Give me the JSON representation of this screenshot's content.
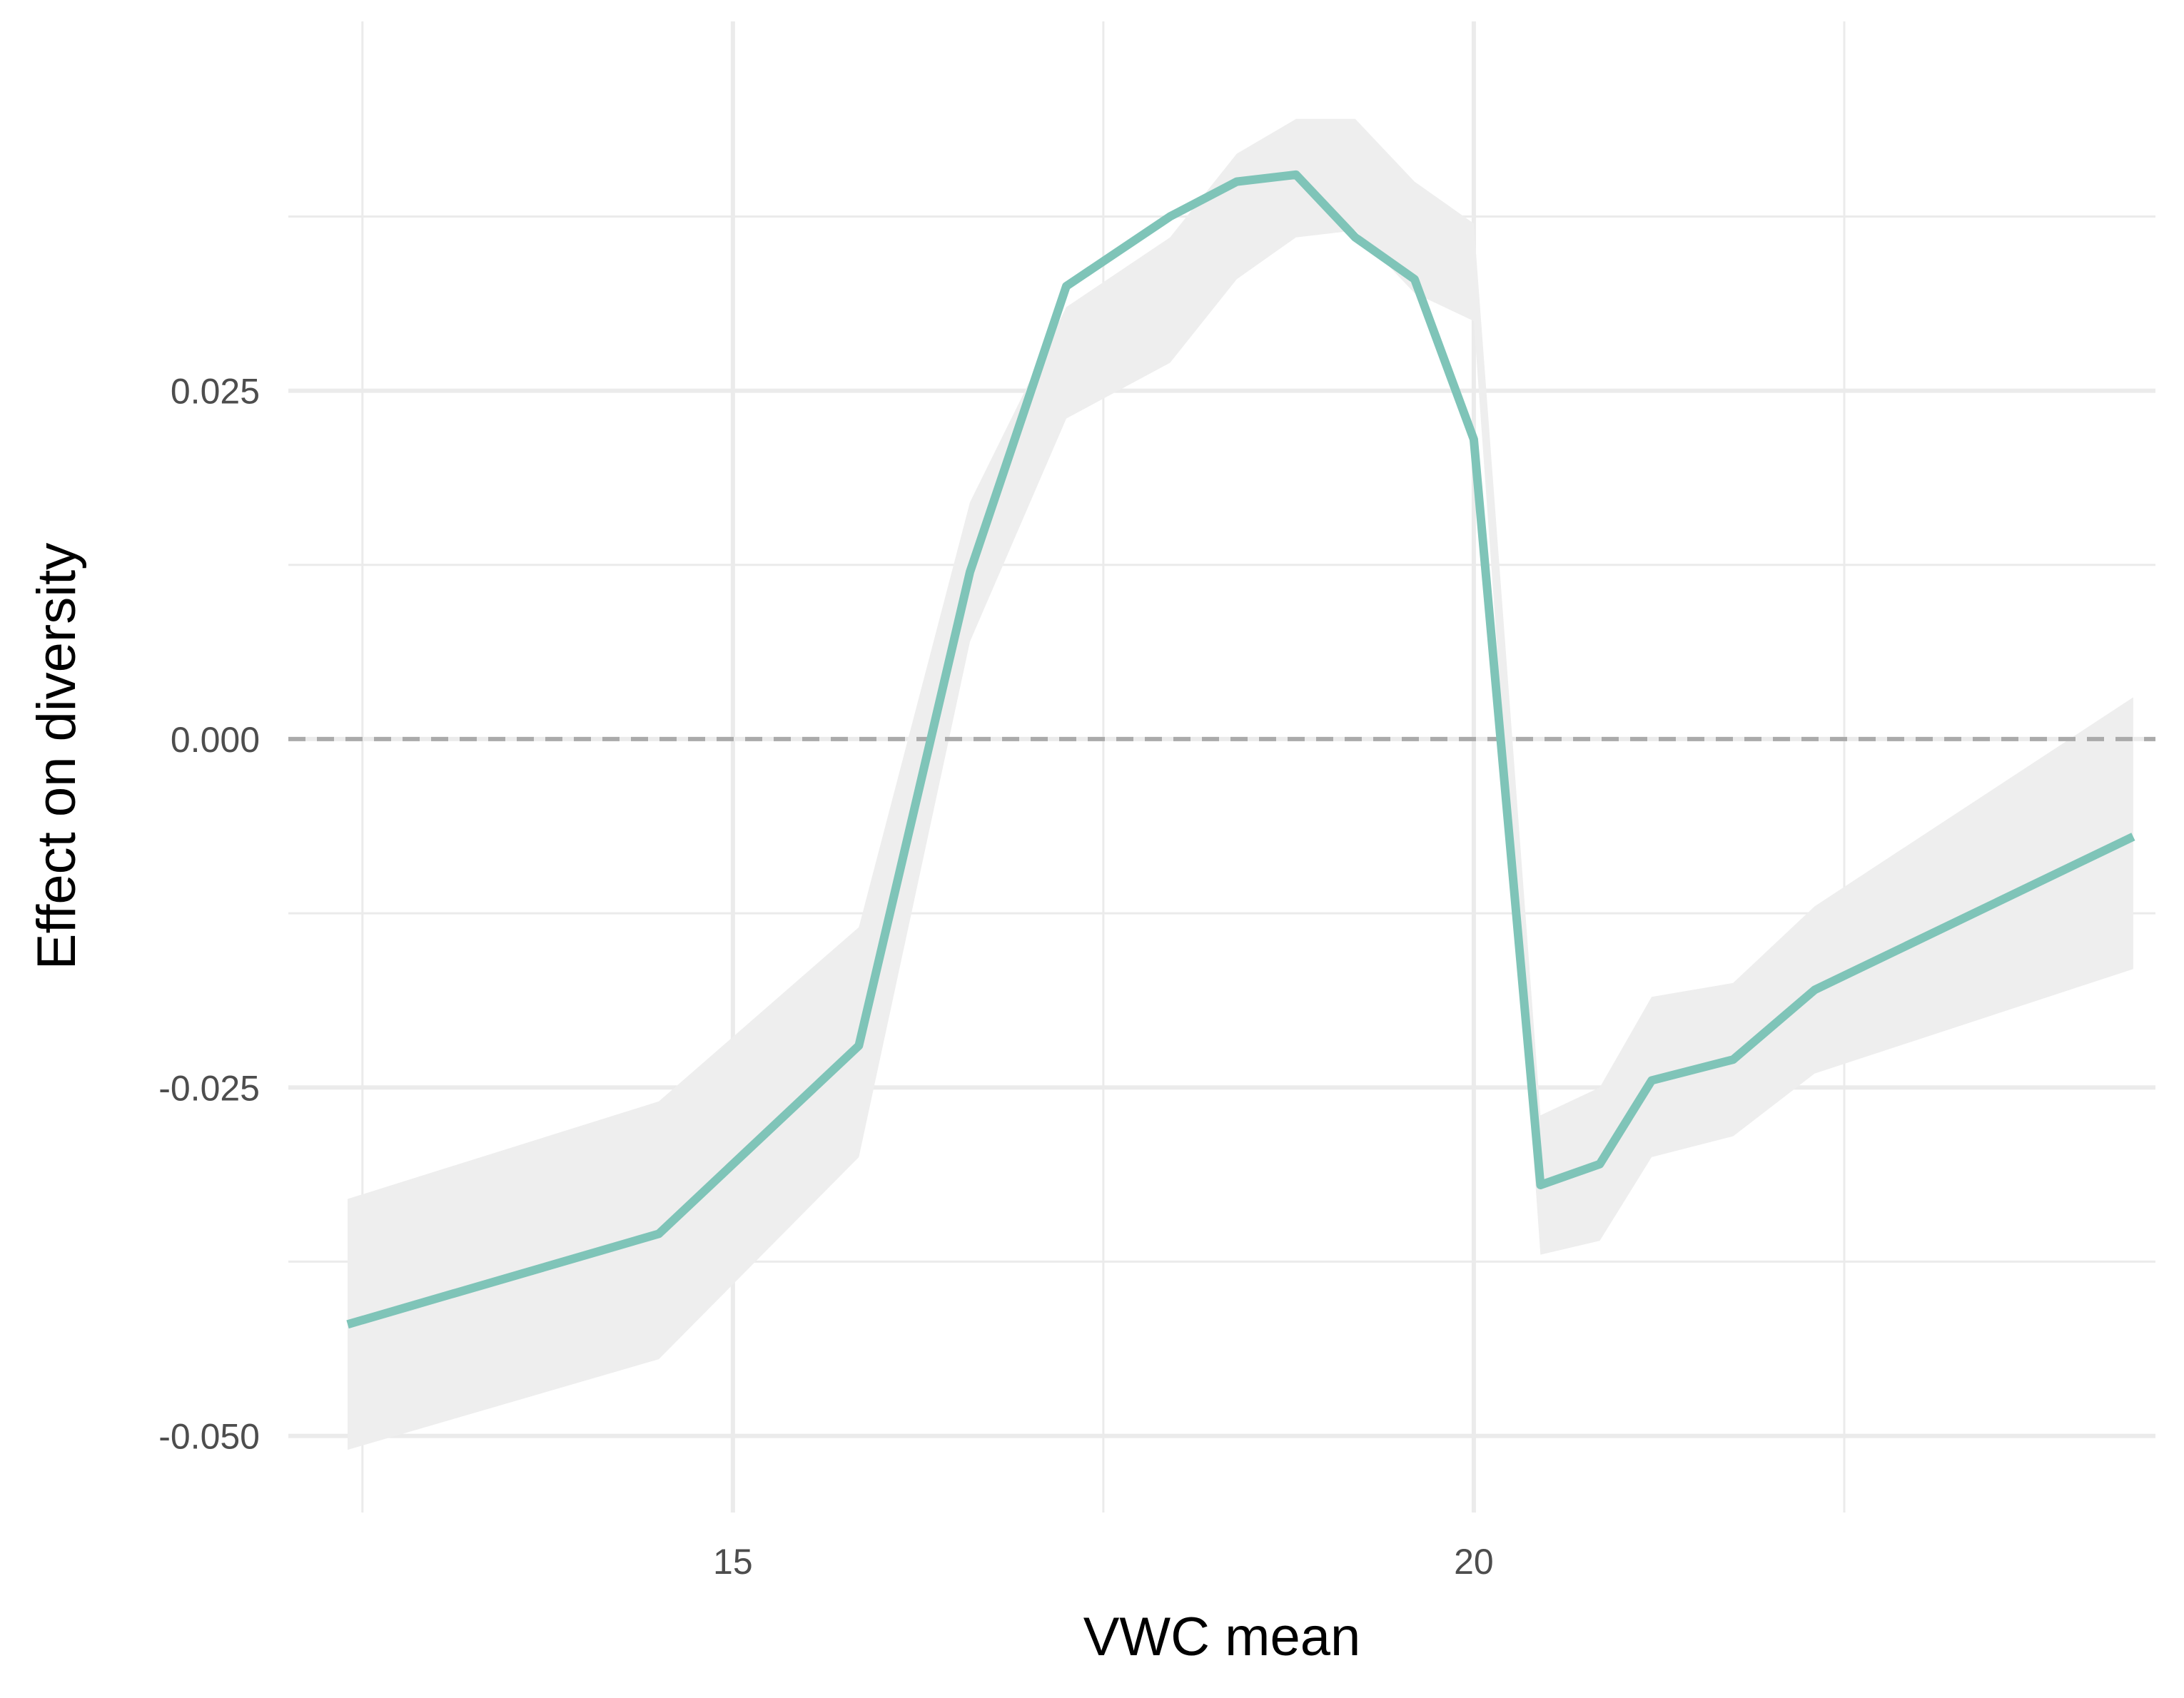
{
  "chart_data": {
    "type": "line",
    "xlabel": "VWC mean",
    "ylabel": "Effect on diversity",
    "xlim": [
      12.0,
      24.6
    ],
    "ylim": [
      -0.0555,
      0.0515
    ],
    "x_ticks": [
      15,
      20
    ],
    "x_minor_ticks": [
      12.5,
      17.5,
      22.5
    ],
    "y_ticks": [
      {
        "value": -0.05,
        "label": "-0.050"
      },
      {
        "value": -0.025,
        "label": "-0.025"
      },
      {
        "value": 0.0,
        "label": "0.000"
      },
      {
        "value": 0.025,
        "label": "0.025"
      }
    ],
    "y_minor_ticks": [
      -0.0375,
      -0.0125,
      0.0125,
      0.0375
    ],
    "reference_line": {
      "y": 0.0,
      "style": "dashed",
      "color": "#aaaaaa"
    },
    "grid": true,
    "colors": {
      "line": "#7fc4b8",
      "ribbon": "#eeeeee",
      "grid": "#ebebeb"
    },
    "series": [
      {
        "x": [
          12.4,
          14.5,
          15.85,
          16.6,
          17.25,
          17.95,
          18.4,
          18.8,
          19.2,
          19.6,
          20.0,
          20.45,
          20.85,
          21.2,
          21.75,
          22.3,
          24.45
        ],
        "y": [
          -0.042,
          -0.0355,
          -0.022,
          0.012,
          0.0325,
          0.0375,
          0.04,
          0.0405,
          0.036,
          0.033,
          0.0215,
          -0.032,
          -0.0305,
          -0.0245,
          -0.023,
          -0.018,
          -0.007
        ],
        "lower": [
          -0.051,
          -0.0445,
          -0.03,
          0.007,
          0.023,
          0.027,
          0.033,
          0.036,
          0.0365,
          0.032,
          0.03,
          -0.037,
          -0.036,
          -0.03,
          -0.0285,
          -0.024,
          -0.0165
        ],
        "upper": [
          -0.033,
          -0.026,
          -0.0135,
          0.017,
          0.031,
          0.036,
          0.042,
          0.0445,
          0.0445,
          0.04,
          0.037,
          -0.027,
          -0.025,
          -0.0185,
          -0.0175,
          -0.012,
          0.003
        ]
      }
    ]
  }
}
